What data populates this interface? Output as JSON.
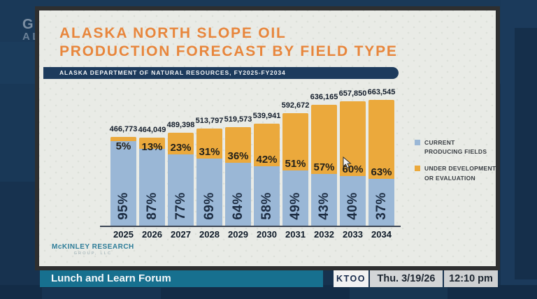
{
  "watermark": {
    "line1": "GAVEL",
    "line2": "ALASKA"
  },
  "card": {
    "title_line1": "ALASKA NORTH SLOPE OIL",
    "title_line2": "PRODUCTION FORECAST BY FIELD TYPE",
    "source_banner": "ALASKA DEPARTMENT OF NATURAL RESOURCES, FY2025-FY2034",
    "logo_line1": "McKINLEY RESEARCH",
    "logo_line2": "GROUP, LLC"
  },
  "chart_data": {
    "type": "bar",
    "stacked": true,
    "title": "Alaska North Slope Oil Production Forecast by Field Type",
    "subtitle": "Alaska Department of Natural Resources, FY2025-FY2034",
    "categories": [
      "2025",
      "2026",
      "2027",
      "2028",
      "2029",
      "2030",
      "2031",
      "2032",
      "2033",
      "2034"
    ],
    "totals": [
      466773,
      464049,
      489398,
      513797,
      519573,
      539941,
      592672,
      636165,
      657850,
      663545
    ],
    "total_labels": [
      "466,773",
      "464,049",
      "489,398",
      "513,797",
      "519,573",
      "539,941",
      "592,672",
      "636,165",
      "657,850",
      "663,545"
    ],
    "series": [
      {
        "name": "CURRENT PRODUCING FIELDS",
        "color": "#9ab7d6",
        "pct": [
          95,
          87,
          77,
          69,
          64,
          58,
          49,
          43,
          40,
          37
        ],
        "pct_labels": [
          "95%",
          "87%",
          "77%",
          "69%",
          "64%",
          "58%",
          "49%",
          "43%",
          "40%",
          "37%"
        ]
      },
      {
        "name": "UNDER DEVELOPMENT OR EVALUATION",
        "color": "#eba93c",
        "pct": [
          5,
          13,
          23,
          31,
          36,
          42,
          51,
          57,
          60,
          63
        ],
        "pct_labels": [
          "5%",
          "13%",
          "23%",
          "31%",
          "36%",
          "42%",
          "51%",
          "57%",
          "60%",
          "63%"
        ]
      }
    ],
    "legend": [
      {
        "color": "#9ab7d6",
        "lines": [
          "CURRENT",
          "PRODUCING FIELDS"
        ]
      },
      {
        "color": "#eba93c",
        "lines": [
          "UNDER DEVELOPMENT",
          "OR EVALUATION"
        ]
      }
    ],
    "legend_position": "right",
    "grid": false,
    "ylim": [
      0,
      680000
    ]
  },
  "ticker": {
    "program_title": "Lunch and Learn Forum",
    "station": "KTOO",
    "date": "Thu. 3/19/26",
    "time": "12:10 pm"
  },
  "colors": {
    "title_orange": "#e8863c",
    "banner_navy": "#1d3b5d",
    "bar_blue": "#9ab7d6",
    "bar_orange": "#eba93c",
    "ticker_teal": "#17708f",
    "background_navy": "#17324f"
  }
}
